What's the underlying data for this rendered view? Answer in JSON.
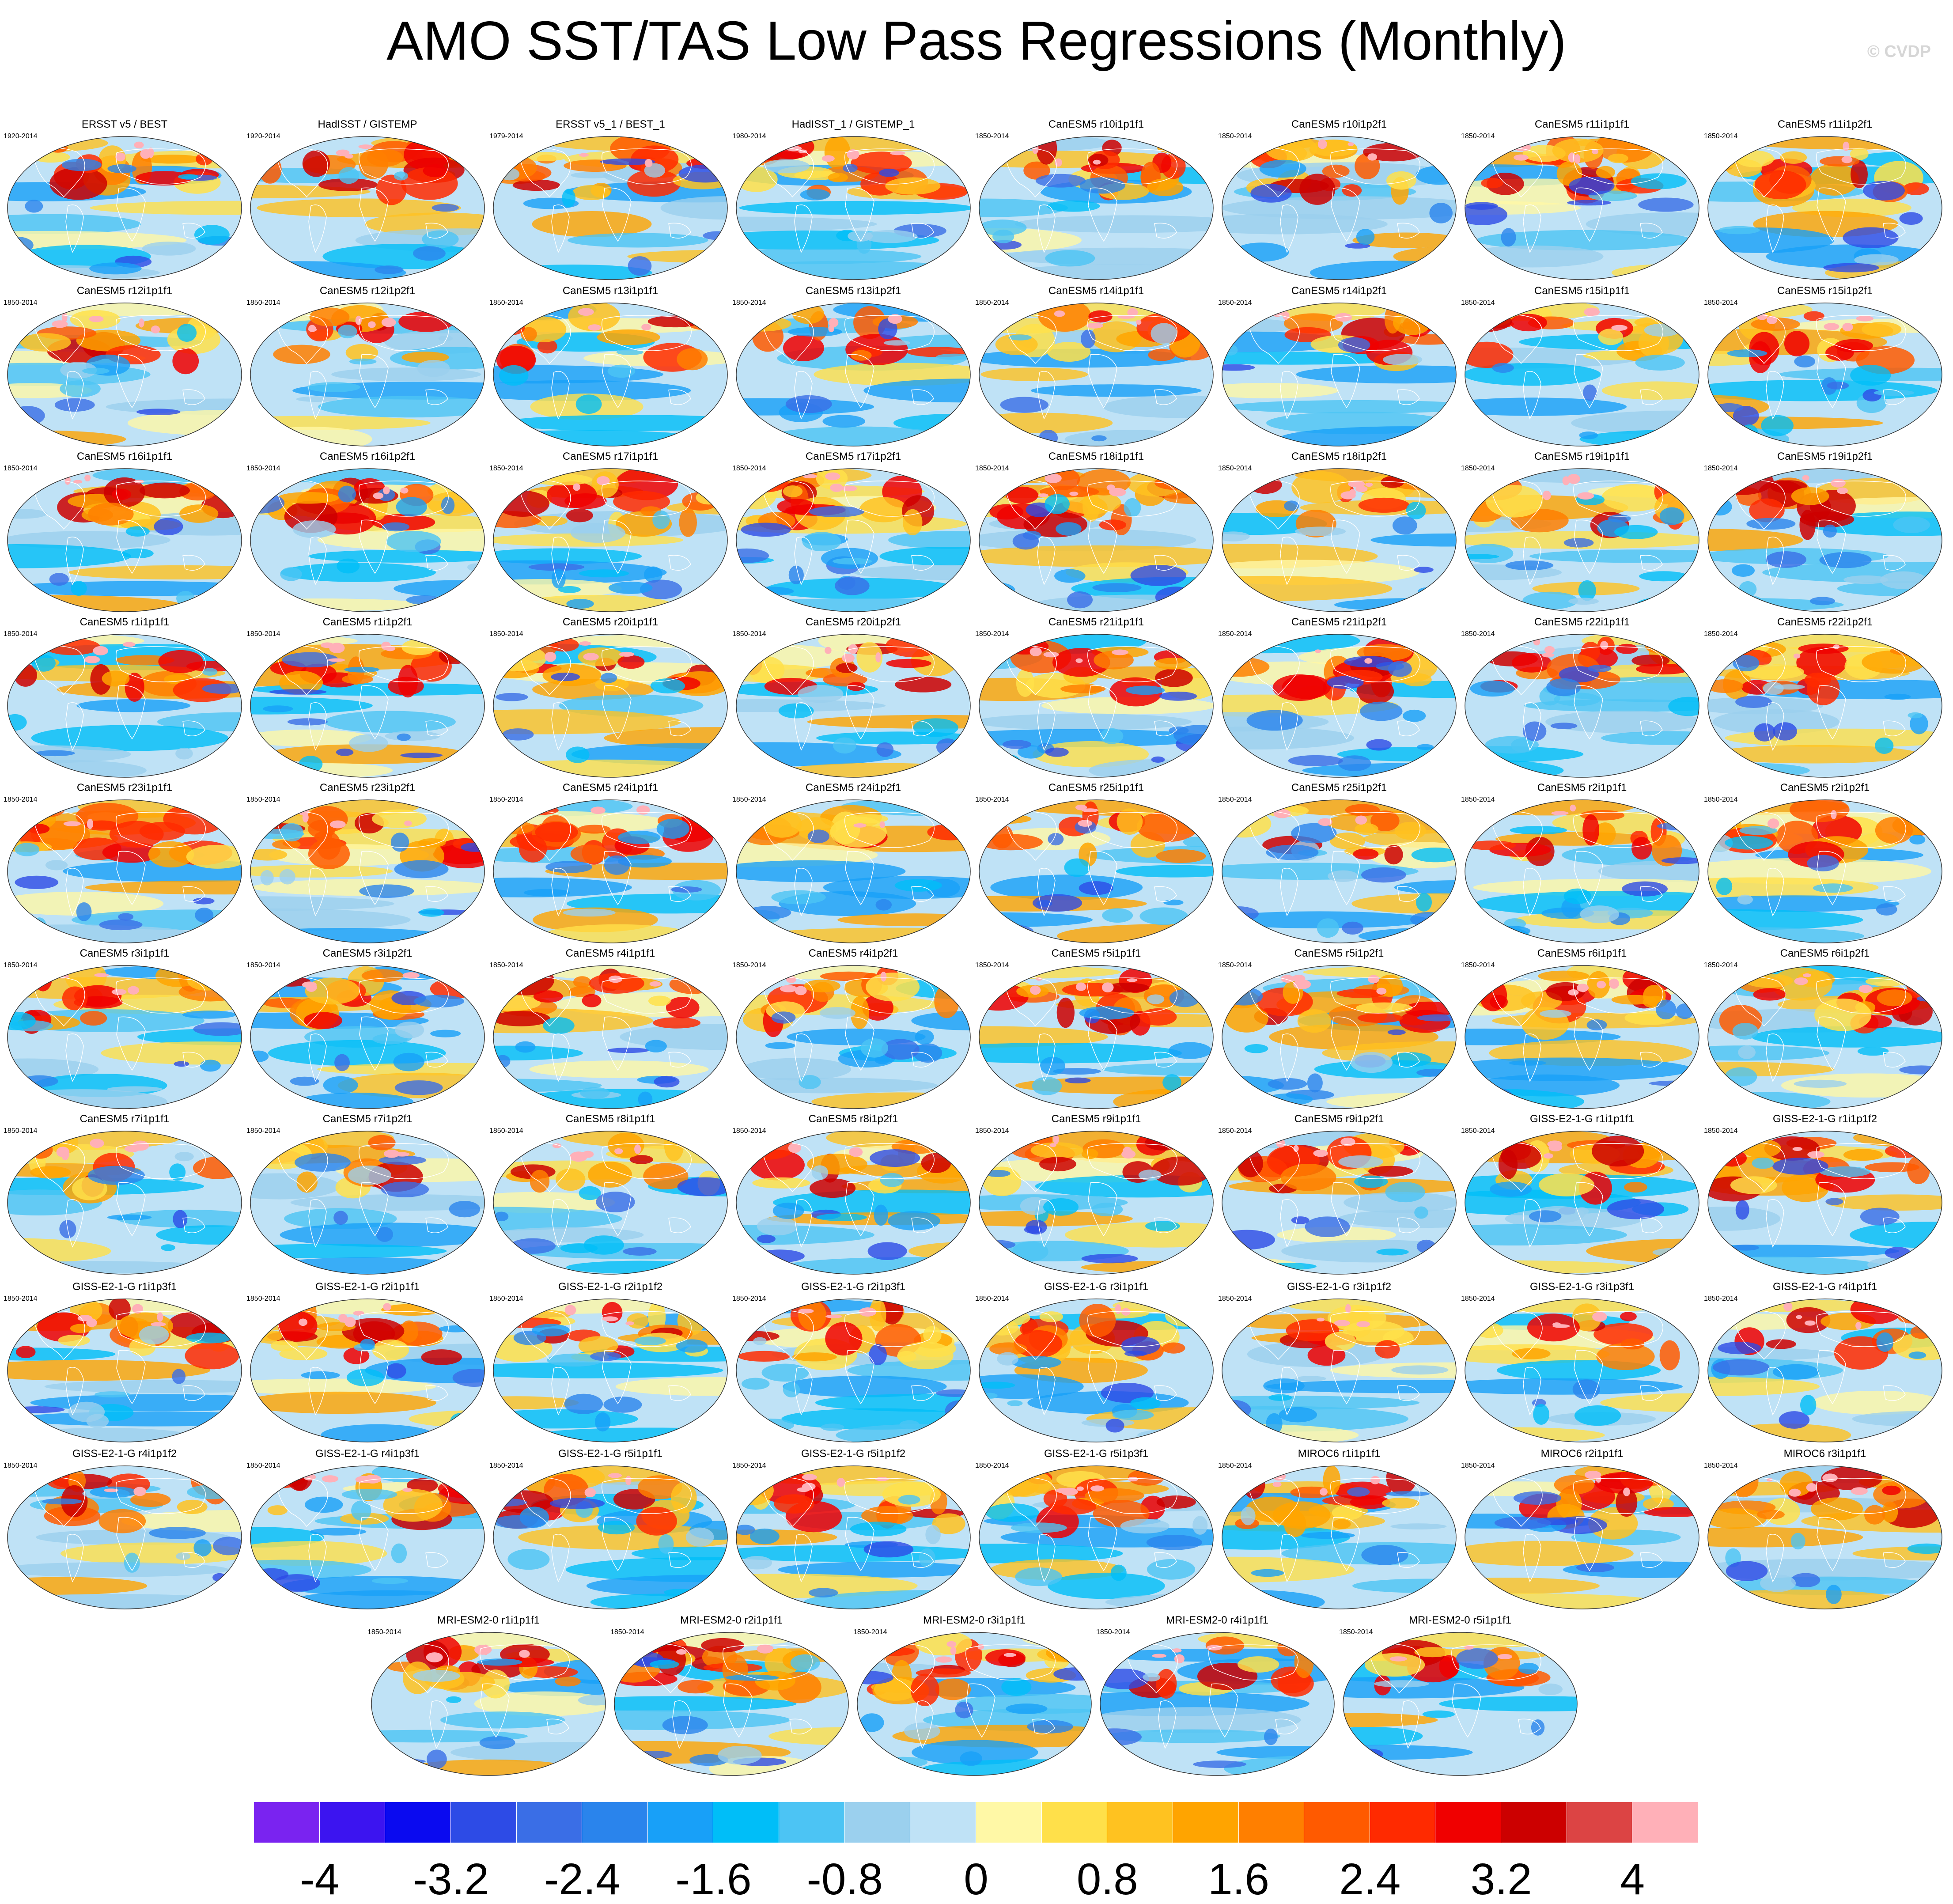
{
  "title": "AMO SST/TAS Low Pass Regressions (Monthly)",
  "watermark": "© CVDP",
  "chart_data": {
    "type": "map_panels",
    "title": "AMO SST/TAS Low Pass Regressions (Monthly)",
    "panels": [
      {
        "name": "ERSST v5 / BEST",
        "years": "1920-2014"
      },
      {
        "name": "HadISST / GISTEMP",
        "years": "1920-2014"
      },
      {
        "name": "ERSST v5_1 / BEST_1",
        "years": "1979-2014"
      },
      {
        "name": "HadISST_1 / GISTEMP_1",
        "years": "1980-2014"
      },
      {
        "name": "CanESM5 r10i1p1f1",
        "years": "1850-2014"
      },
      {
        "name": "CanESM5 r10i1p2f1",
        "years": "1850-2014"
      },
      {
        "name": "CanESM5 r11i1p1f1",
        "years": "1850-2014"
      },
      {
        "name": "CanESM5 r11i1p2f1",
        "years": "1850-2014"
      },
      {
        "name": "CanESM5 r12i1p1f1",
        "years": "1850-2014"
      },
      {
        "name": "CanESM5 r12i1p2f1",
        "years": "1850-2014"
      },
      {
        "name": "CanESM5 r13i1p1f1",
        "years": "1850-2014"
      },
      {
        "name": "CanESM5 r13i1p2f1",
        "years": "1850-2014"
      },
      {
        "name": "CanESM5 r14i1p1f1",
        "years": "1850-2014"
      },
      {
        "name": "CanESM5 r14i1p2f1",
        "years": "1850-2014"
      },
      {
        "name": "CanESM5 r15i1p1f1",
        "years": "1850-2014"
      },
      {
        "name": "CanESM5 r15i1p2f1",
        "years": "1850-2014"
      },
      {
        "name": "CanESM5 r16i1p1f1",
        "years": "1850-2014"
      },
      {
        "name": "CanESM5 r16i1p2f1",
        "years": "1850-2014"
      },
      {
        "name": "CanESM5 r17i1p1f1",
        "years": "1850-2014"
      },
      {
        "name": "CanESM5 r17i1p2f1",
        "years": "1850-2014"
      },
      {
        "name": "CanESM5 r18i1p1f1",
        "years": "1850-2014"
      },
      {
        "name": "CanESM5 r18i1p2f1",
        "years": "1850-2014"
      },
      {
        "name": "CanESM5 r19i1p1f1",
        "years": "1850-2014"
      },
      {
        "name": "CanESM5 r19i1p2f1",
        "years": "1850-2014"
      },
      {
        "name": "CanESM5 r1i1p1f1",
        "years": "1850-2014"
      },
      {
        "name": "CanESM5 r1i1p2f1",
        "years": "1850-2014"
      },
      {
        "name": "CanESM5 r20i1p1f1",
        "years": "1850-2014"
      },
      {
        "name": "CanESM5 r20i1p2f1",
        "years": "1850-2014"
      },
      {
        "name": "CanESM5 r21i1p1f1",
        "years": "1850-2014"
      },
      {
        "name": "CanESM5 r21i1p2f1",
        "years": "1850-2014"
      },
      {
        "name": "CanESM5 r22i1p1f1",
        "years": "1850-2014"
      },
      {
        "name": "CanESM5 r22i1p2f1",
        "years": "1850-2014"
      },
      {
        "name": "CanESM5 r23i1p1f1",
        "years": "1850-2014"
      },
      {
        "name": "CanESM5 r23i1p2f1",
        "years": "1850-2014"
      },
      {
        "name": "CanESM5 r24i1p1f1",
        "years": "1850-2014"
      },
      {
        "name": "CanESM5 r24i1p2f1",
        "years": "1850-2014"
      },
      {
        "name": "CanESM5 r25i1p1f1",
        "years": "1850-2014"
      },
      {
        "name": "CanESM5 r25i1p2f1",
        "years": "1850-2014"
      },
      {
        "name": "CanESM5 r2i1p1f1",
        "years": "1850-2014"
      },
      {
        "name": "CanESM5 r2i1p2f1",
        "years": "1850-2014"
      },
      {
        "name": "CanESM5 r3i1p1f1",
        "years": "1850-2014"
      },
      {
        "name": "CanESM5 r3i1p2f1",
        "years": "1850-2014"
      },
      {
        "name": "CanESM5 r4i1p1f1",
        "years": "1850-2014"
      },
      {
        "name": "CanESM5 r4i1p2f1",
        "years": "1850-2014"
      },
      {
        "name": "CanESM5 r5i1p1f1",
        "years": "1850-2014"
      },
      {
        "name": "CanESM5 r5i1p2f1",
        "years": "1850-2014"
      },
      {
        "name": "CanESM5 r6i1p1f1",
        "years": "1850-2014"
      },
      {
        "name": "CanESM5 r6i1p2f1",
        "years": "1850-2014"
      },
      {
        "name": "CanESM5 r7i1p1f1",
        "years": "1850-2014"
      },
      {
        "name": "CanESM5 r7i1p2f1",
        "years": "1850-2014"
      },
      {
        "name": "CanESM5 r8i1p1f1",
        "years": "1850-2014"
      },
      {
        "name": "CanESM5 r8i1p2f1",
        "years": "1850-2014"
      },
      {
        "name": "CanESM5 r9i1p1f1",
        "years": "1850-2014"
      },
      {
        "name": "CanESM5 r9i1p2f1",
        "years": "1850-2014"
      },
      {
        "name": "GISS-E2-1-G r1i1p1f1",
        "years": "1850-2014"
      },
      {
        "name": "GISS-E2-1-G r1i1p1f2",
        "years": "1850-2014"
      },
      {
        "name": "GISS-E2-1-G r1i1p3f1",
        "years": "1850-2014"
      },
      {
        "name": "GISS-E2-1-G r2i1p1f1",
        "years": "1850-2014"
      },
      {
        "name": "GISS-E2-1-G r2i1p1f2",
        "years": "1850-2014"
      },
      {
        "name": "GISS-E2-1-G r2i1p3f1",
        "years": "1850-2014"
      },
      {
        "name": "GISS-E2-1-G r3i1p1f1",
        "years": "1850-2014"
      },
      {
        "name": "GISS-E2-1-G r3i1p1f2",
        "years": "1850-2014"
      },
      {
        "name": "GISS-E2-1-G r3i1p3f1",
        "years": "1850-2014"
      },
      {
        "name": "GISS-E2-1-G r4i1p1f1",
        "years": "1850-2014"
      },
      {
        "name": "GISS-E2-1-G r4i1p1f2",
        "years": "1850-2014"
      },
      {
        "name": "GISS-E2-1-G r4i1p3f1",
        "years": "1850-2014"
      },
      {
        "name": "GISS-E2-1-G r5i1p1f1",
        "years": "1850-2014"
      },
      {
        "name": "GISS-E2-1-G r5i1p1f2",
        "years": "1850-2014"
      },
      {
        "name": "GISS-E2-1-G r5i1p3f1",
        "years": "1850-2014"
      },
      {
        "name": "MIROC6 r1i1p1f1",
        "years": "1850-2014"
      },
      {
        "name": "MIROC6 r2i1p1f1",
        "years": "1850-2014"
      },
      {
        "name": "MIROC6 r3i1p1f1",
        "years": "1850-2014"
      },
      {
        "name": "MRI-ESM2-0 r1i1p1f1",
        "years": "1850-2014"
      },
      {
        "name": "MRI-ESM2-0 r2i1p1f1",
        "years": "1850-2014"
      },
      {
        "name": "MRI-ESM2-0 r3i1p1f1",
        "years": "1850-2014"
      },
      {
        "name": "MRI-ESM2-0 r4i1p1f1",
        "years": "1850-2014"
      },
      {
        "name": "MRI-ESM2-0 r5i1p1f1",
        "years": "1850-2014"
      }
    ],
    "colorbar": {
      "range": [
        -4.4,
        4.4
      ],
      "step": 0.4,
      "tick_labels": [
        "-4",
        "-3.2",
        "-2.4",
        "-1.6",
        "-0.8",
        "0",
        "0.8",
        "1.6",
        "2.4",
        "3.2",
        "4"
      ],
      "tick_values": [
        -4,
        -3.2,
        -2.4,
        -1.6,
        -0.8,
        0,
        0.8,
        1.6,
        2.4,
        3.2,
        4
      ],
      "colors": [
        "#7a23f0",
        "#3c14f0",
        "#0a0af0",
        "#2d4be6",
        "#3a6ee6",
        "#2a84ec",
        "#18a0f8",
        "#00bef8",
        "#4cc4f4",
        "#9bd0ee",
        "#bfe2f6",
        "#fff8a6",
        "#ffe04a",
        "#ffc220",
        "#ffa400",
        "#ff7f00",
        "#ff5a00",
        "#ff2a00",
        "#f00000",
        "#cc0000",
        "#dc4444",
        "#ffb0b8"
      ]
    }
  }
}
